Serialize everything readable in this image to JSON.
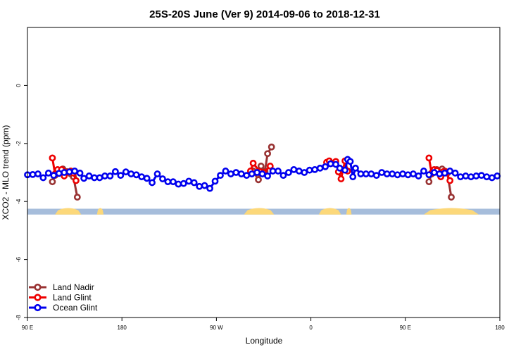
{
  "chart_data": {
    "type": "line",
    "title": "25S-20S June (Ver 9)   2014-09-06 to 2018-12-31",
    "xlabel": "Longitude",
    "ylabel": "XCO2 - MLO trend (ppm)",
    "xlim": [
      90,
      450
    ],
    "ylim": [
      -8,
      2
    ],
    "x_ticks": [
      {
        "value": 90,
        "label": "90 E"
      },
      {
        "value": 162,
        "label": "180"
      },
      {
        "value": 234,
        "label": "90 W"
      },
      {
        "value": 306,
        "label": "0"
      },
      {
        "value": 378,
        "label": "90 E"
      },
      {
        "value": 450,
        "label": "180"
      }
    ],
    "y_ticks": [
      {
        "value": -8,
        "label": "-8"
      },
      {
        "value": -6,
        "label": "-6"
      },
      {
        "value": -4,
        "label": "-4"
      },
      {
        "value": -2,
        "label": "-2"
      },
      {
        "value": 0,
        "label": "0"
      }
    ],
    "grid": false,
    "legend_position": "bottom-left",
    "land_strip": {
      "y_top": -4.25,
      "y_bottom": -4.45,
      "ocean_color": "#a6bddb",
      "land_color": "#fcd87a",
      "land_segments": [
        [
          111,
          131
        ],
        [
          143,
          148
        ],
        [
          255,
          278
        ],
        [
          312,
          329
        ],
        [
          333,
          337
        ],
        [
          392,
          434
        ]
      ]
    },
    "series": [
      {
        "name": "Land Nadir",
        "color": "#993333",
        "segments": [
          [
            [
              109,
              -3.32
            ],
            [
              111,
              -3.1
            ],
            [
              113,
              -2.95
            ],
            [
              117,
              -2.88
            ],
            [
              120,
              -2.97
            ],
            [
              123,
              -3.05
            ],
            [
              125,
              -3.15
            ],
            [
              128,
              -3.85
            ]
          ],
          [
            [
              262,
              -2.95
            ],
            [
              266,
              -3.25
            ],
            [
              268,
              -2.78
            ],
            [
              271,
              -2.95
            ],
            [
              273,
              -2.35
            ],
            [
              276,
              -2.12
            ]
          ],
          [
            [
              396,
              -3.32
            ],
            [
              398,
              -3.05
            ],
            [
              400,
              -2.95
            ],
            [
              402,
              -2.9
            ],
            [
              404,
              -2.95
            ],
            [
              406,
              -2.88
            ],
            [
              408,
              -2.95
            ],
            [
              410,
              -3.02
            ],
            [
              413,
              -3.85
            ]
          ]
        ]
      },
      {
        "name": "Land Glint",
        "color": "#ee0000",
        "segments": [
          [
            [
              109,
              -2.5
            ],
            [
              111,
              -3.05
            ],
            [
              113,
              -2.9
            ],
            [
              116,
              -2.9
            ],
            [
              118,
              -3.12
            ],
            [
              120,
              -3.0
            ],
            [
              123,
              -2.95
            ],
            [
              125,
              -3.02
            ],
            [
              127,
              -3.28
            ]
          ],
          [
            [
              260,
              -2.95
            ],
            [
              262,
              -2.68
            ],
            [
              267,
              -2.97
            ],
            [
              270,
              -3.0
            ],
            [
              275,
              -2.78
            ]
          ],
          [
            [
              318,
              -2.65
            ],
            [
              320,
              -2.6
            ],
            [
              322,
              -2.68
            ],
            [
              325,
              -2.62
            ],
            [
              327,
              -2.98
            ],
            [
              329,
              -3.22
            ],
            [
              332,
              -2.6
            ],
            [
              334,
              -2.95
            ]
          ],
          [
            [
              396,
              -2.5
            ],
            [
              398,
              -3.02
            ],
            [
              400,
              -2.9
            ],
            [
              402,
              -2.93
            ],
            [
              405,
              -3.15
            ],
            [
              407,
              -2.97
            ],
            [
              409,
              -2.98
            ],
            [
              412,
              -3.28
            ]
          ]
        ]
      },
      {
        "name": "Ocean Glint",
        "color": "#0000ee",
        "segments": [
          [
            [
              90,
              -3.08
            ],
            [
              94,
              -3.07
            ],
            [
              98,
              -3.05
            ],
            [
              102,
              -3.18
            ],
            [
              106,
              -3.02
            ],
            [
              110,
              -3.1
            ],
            [
              114,
              -3.03
            ],
            [
              118,
              -3.0
            ],
            [
              122,
              -2.98
            ],
            [
              126,
              -2.95
            ],
            [
              130,
              -3.02
            ],
            [
              133,
              -3.2
            ],
            [
              137,
              -3.12
            ],
            [
              141,
              -3.18
            ],
            [
              145,
              -3.18
            ],
            [
              149,
              -3.12
            ],
            [
              153,
              -3.12
            ],
            [
              157,
              -2.97
            ],
            [
              161,
              -3.1
            ],
            [
              165,
              -2.98
            ],
            [
              169,
              -3.05
            ],
            [
              173,
              -3.08
            ],
            [
              177,
              -3.15
            ],
            [
              181,
              -3.2
            ],
            [
              185,
              -3.35
            ],
            [
              189,
              -3.05
            ],
            [
              193,
              -3.22
            ],
            [
              197,
              -3.32
            ],
            [
              201,
              -3.32
            ],
            [
              205,
              -3.4
            ],
            [
              209,
              -3.38
            ],
            [
              213,
              -3.3
            ],
            [
              217,
              -3.35
            ],
            [
              221,
              -3.48
            ],
            [
              225,
              -3.45
            ],
            [
              229,
              -3.55
            ],
            [
              233,
              -3.3
            ],
            [
              237,
              -3.1
            ],
            [
              241,
              -2.95
            ],
            [
              245,
              -3.05
            ],
            [
              249,
              -3.0
            ],
            [
              253,
              -3.05
            ],
            [
              257,
              -3.1
            ],
            [
              261,
              -3.05
            ],
            [
              265,
              -3.0
            ],
            [
              269,
              -3.05
            ],
            [
              273,
              -3.12
            ],
            [
              277,
              -2.95
            ],
            [
              281,
              -2.95
            ],
            [
              285,
              -3.1
            ],
            [
              289,
              -3.0
            ],
            [
              293,
              -2.9
            ],
            [
              297,
              -2.95
            ],
            [
              301,
              -3.0
            ],
            [
              305,
              -2.92
            ],
            [
              309,
              -2.9
            ],
            [
              313,
              -2.85
            ],
            [
              317,
              -2.8
            ],
            [
              321,
              -2.7
            ],
            [
              325,
              -2.72
            ],
            [
              328,
              -2.85
            ],
            [
              332,
              -2.92
            ],
            [
              334,
              -2.55
            ],
            [
              336,
              -2.62
            ],
            [
              338,
              -3.15
            ],
            [
              340,
              -2.85
            ],
            [
              344,
              -3.05
            ],
            [
              348,
              -3.05
            ],
            [
              352,
              -3.05
            ],
            [
              356,
              -3.1
            ],
            [
              360,
              -3.0
            ],
            [
              364,
              -3.05
            ],
            [
              368,
              -3.05
            ],
            [
              372,
              -3.08
            ],
            [
              376,
              -3.05
            ],
            [
              380,
              -3.08
            ],
            [
              384,
              -3.05
            ],
            [
              388,
              -3.12
            ],
            [
              392,
              -2.95
            ],
            [
              396,
              -3.08
            ],
            [
              400,
              -3.0
            ],
            [
              404,
              -3.05
            ],
            [
              408,
              -3.02
            ],
            [
              412,
              -2.95
            ],
            [
              416,
              -3.02
            ],
            [
              420,
              -3.15
            ],
            [
              424,
              -3.12
            ],
            [
              428,
              -3.15
            ],
            [
              432,
              -3.12
            ],
            [
              436,
              -3.1
            ],
            [
              440,
              -3.15
            ],
            [
              444,
              -3.18
            ],
            [
              448,
              -3.12
            ]
          ]
        ]
      }
    ]
  }
}
